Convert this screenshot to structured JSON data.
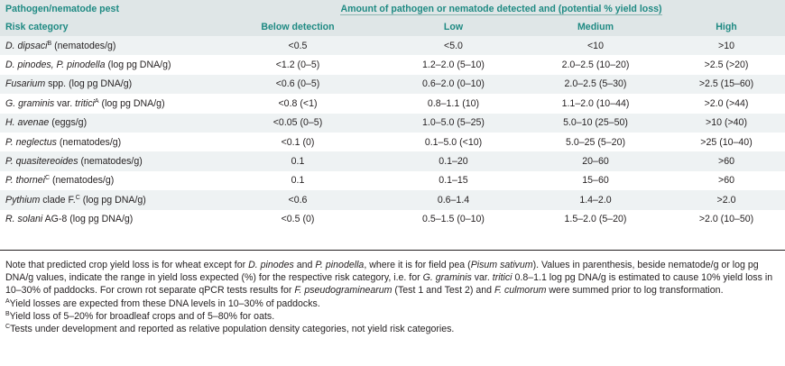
{
  "header": {
    "left1": "Pathogen/nematode pest",
    "span": "Amount of pathogen or nematode detected and (potential % yield loss)",
    "left2": "Risk category",
    "cols": [
      "Below detection",
      "Low",
      "Medium",
      "High"
    ]
  },
  "rows": [
    {
      "pre": "",
      "it": "D. dipsaci",
      "sup": "B",
      "post": " (nematodes/g)",
      "cells": [
        "<0.5",
        "<5.0",
        "<10",
        ">10"
      ]
    },
    {
      "pre": "",
      "it": "D. pinodes, P. pinodella",
      "sup": "",
      "post": " (log pg DNA/g)",
      "cells": [
        "<1.2 (0–5)",
        "1.2–2.0 (5–10)",
        "2.0–2.5 (10–20)",
        ">2.5 (>20)"
      ]
    },
    {
      "pre": "",
      "it": "Fusarium",
      "sup": "",
      "post": " spp. (log pg DNA/g)",
      "cells": [
        "<0.6 (0–5)",
        "0.6–2.0 (0–10)",
        "2.0–2.5 (5–30)",
        ">2.5 (15–60)"
      ]
    },
    {
      "pre": "",
      "it": "G. graminis",
      "sup": "",
      "post": " var. ",
      "it2": "tritici",
      "sup2": "A",
      "post2": " (log pg DNA/g)",
      "cells": [
        "<0.8 (<1)",
        "0.8–1.1 (10)",
        "1.1–2.0 (10–44)",
        ">2.0 (>44)"
      ]
    },
    {
      "pre": "",
      "it": "H. avenae",
      "sup": "",
      "post": " (eggs/g)",
      "cells": [
        "<0.05 (0–5)",
        "1.0–5.0 (5–25)",
        "5.0–10 (25–50)",
        ">10 (>40)"
      ]
    },
    {
      "pre": "",
      "it": "P. neglectus",
      "sup": "",
      "post": " (nematodes/g)",
      "cells": [
        "<0.1 (0)",
        "0.1–5.0 (<10)",
        "5.0–25 (5–20)",
        ">25 (10–40)"
      ]
    },
    {
      "pre": "",
      "it": "P. quasitereoides",
      "sup": "",
      "post": " (nematodes/g)",
      "cells": [
        "0.1",
        "0.1–20",
        "20–60",
        ">60"
      ]
    },
    {
      "pre": "",
      "it": "P. thornei",
      "sup": "C",
      "post": " (nematodes/g)",
      "cells": [
        "0.1",
        "0.1–15",
        "15–60",
        ">60"
      ]
    },
    {
      "pre": "",
      "it": "Pythium",
      "sup": "",
      "post": " clade F.",
      "sup3": "C",
      "post3": " (log pg DNA/g)",
      "cells": [
        "<0.6",
        "0.6–1.4",
        "1.4–2.0",
        ">2.0"
      ]
    },
    {
      "pre": "",
      "it": "R. solani",
      "sup": "",
      "post": " AG-8 (log pg DNA/g)",
      "cells": [
        "<0.5 (0)",
        "0.5–1.5 (0–10)",
        "1.5–2.0 (5–20)",
        ">2.0 (10–50)"
      ]
    }
  ],
  "notes": {
    "n1_a": "Note that predicted crop yield loss is for wheat except for ",
    "n1_b": "D. pinodes",
    "n1_c": " and ",
    "n1_d": "P. pinodella",
    "n1_e": ", where it is for field pea (",
    "n1_f": "Pisum sativum",
    "n1_g": "). Values in parenthesis, beside nematode/g or log pg DNA/g values, indicate the range in yield loss expected (%) for the respective risk category, i.e. for ",
    "n1_h": "G. graminis",
    "n1_i": " var. ",
    "n1_j": "tritici",
    "n1_k": " 0.8–1.1 log pg DNA/g is estimated to cause 10% yield loss in 10–30% of paddocks. For crown rot separate qPCR tests results for ",
    "n1_l": "F. pseudograminearum",
    "n1_m": " (Test 1 and Test 2) and ",
    "n1_n": "F. culmorum",
    "n1_o": " were summed prior to log transformation.",
    "a_sup": "A",
    "a_text": "Yield losses are expected from these DNA levels in 10–30% of paddocks.",
    "b_sup": "B",
    "b_text": "Yield loss of 5–20% for broadleaf crops and of 5–80% for oats.",
    "c_sup": "C",
    "c_text": "Tests under development and reported as relative population density categories, not yield risk categories."
  }
}
